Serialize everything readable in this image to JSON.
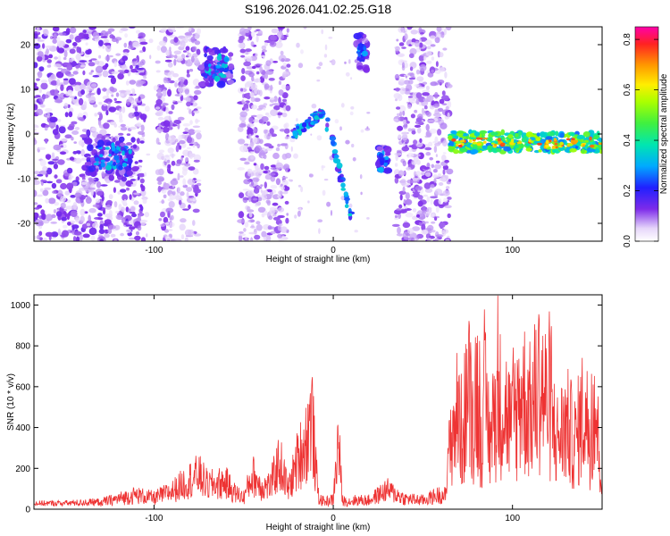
{
  "chart_data": [
    {
      "type": "heatmap",
      "title": "S196.2026.041.02.25.G18",
      "xlabel": "Height of straight line (km)",
      "ylabel": "Frequency (Hz)",
      "xlim": [
        -167,
        150
      ],
      "ylim": [
        -24,
        24
      ],
      "xticks": [
        -100,
        0,
        100
      ],
      "xtick_labels": [
        "-100",
        "0",
        "100"
      ],
      "yticks": [
        -20,
        -10,
        0,
        10,
        20
      ],
      "ytick_labels": [
        "-20",
        "-10",
        "0",
        "10",
        "20"
      ],
      "colorbar": {
        "label": "Normalized spectral amplitude",
        "range": [
          0.0,
          0.85
        ],
        "ticks": [
          0.0,
          0.2,
          0.4,
          0.6,
          0.8
        ],
        "tick_labels": [
          "0.0",
          "0.2",
          "0.4",
          "0.6",
          "0.8"
        ]
      },
      "features": [
        {
          "name": "noise-band-left",
          "x_range": [
            -167,
            -105
          ],
          "freq_range": [
            -24,
            24
          ],
          "amplitude": 0.12
        },
        {
          "name": "noise-band-middle",
          "x_range": [
            -98,
            -75
          ],
          "freq_range": [
            -24,
            24
          ],
          "amplitude": 0.1
        },
        {
          "name": "noise-band-center",
          "x_range": [
            -52,
            -25
          ],
          "freq_range": [
            -24,
            24
          ],
          "amplitude": 0.1
        },
        {
          "name": "noise-band-right",
          "x_range": [
            35,
            65
          ],
          "freq_range": [
            -24,
            24
          ],
          "amplitude": 0.1
        },
        {
          "name": "cluster-a",
          "center_x": -123,
          "center_freq": -5,
          "amplitude": 0.35
        },
        {
          "name": "cluster-b",
          "center_x": -65,
          "center_freq": 15,
          "amplitude": 0.35
        },
        {
          "name": "arc-signal",
          "x_range": [
            -22,
            10
          ],
          "peak_freq": 5,
          "amplitude": 0.35
        },
        {
          "name": "cluster-c",
          "center_x": 16,
          "center_freq": 18,
          "amplitude": 0.35
        },
        {
          "name": "cluster-d",
          "center_x": 28,
          "center_freq": -6,
          "amplitude": 0.3
        },
        {
          "name": "steady-band",
          "x_range": [
            64,
            150
          ],
          "freq_range": [
            -4,
            0
          ],
          "amplitude": 0.55
        }
      ]
    },
    {
      "type": "line",
      "xlabel": "Height of straight line (km)",
      "ylabel": "SNR (10 * v/v)",
      "xlim": [
        -167,
        150
      ],
      "ylim": [
        0,
        1050
      ],
      "xticks": [
        -100,
        0,
        100
      ],
      "xtick_labels": [
        "-100",
        "0",
        "100"
      ],
      "yticks": [
        0,
        200,
        400,
        600,
        800,
        1000
      ],
      "ytick_labels": [
        "0",
        "200",
        "400",
        "600",
        "800",
        "1000"
      ],
      "color": "#ee3333",
      "series": [
        {
          "name": "SNR",
          "x": [
            -167,
            -150,
            -130,
            -120,
            -110,
            -100,
            -90,
            -80,
            -75,
            -70,
            -60,
            -55,
            -50,
            -45,
            -40,
            -35,
            -30,
            -25,
            -20,
            -15,
            -12,
            -10,
            -8,
            -5,
            0,
            3,
            5,
            8,
            12,
            20,
            30,
            40,
            50,
            60,
            63,
            64,
            66,
            70,
            72,
            75,
            78,
            80,
            82,
            85,
            88,
            90,
            95,
            100,
            105,
            110,
            115,
            120,
            125,
            130,
            135,
            140,
            143,
            146,
            150
          ],
          "y": [
            30,
            32,
            45,
            70,
            95,
            75,
            120,
            200,
            230,
            160,
            180,
            110,
            80,
            230,
            150,
            160,
            320,
            130,
            330,
            460,
            650,
            300,
            70,
            50,
            65,
            470,
            60,
            50,
            60,
            60,
            130,
            70,
            60,
            100,
            90,
            340,
            620,
            800,
            580,
            1000,
            720,
            1040,
            600,
            850,
            520,
            820,
            880,
            620,
            960,
            780,
            1020,
            840,
            560,
            690,
            540,
            820,
            600,
            860,
            180
          ]
        }
      ]
    }
  ]
}
